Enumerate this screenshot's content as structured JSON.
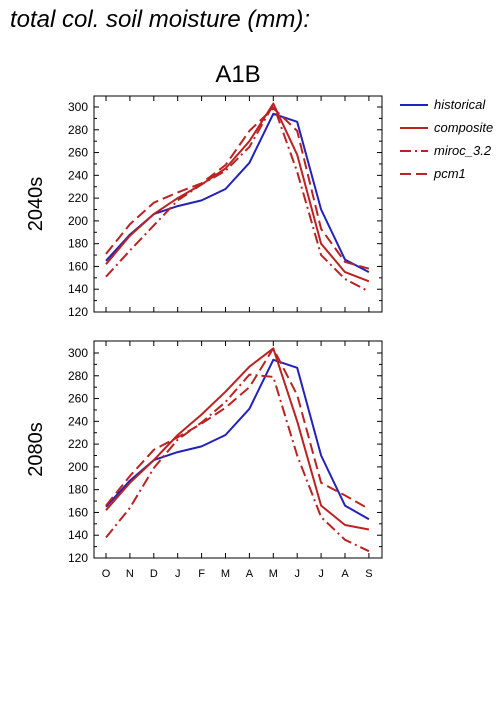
{
  "page": {
    "title": "total col. soil moisture (mm):",
    "scenario": "A1B"
  },
  "legend": [
    {
      "name": "historical",
      "color": "#2222bb",
      "dash": "solid"
    },
    {
      "name": "composite",
      "color": "#bb2222",
      "dash": "solid"
    },
    {
      "name": "miroc_3.2",
      "color": "#bb2222",
      "dash": "dashdot"
    },
    {
      "name": "pcm1",
      "color": "#bb2222",
      "dash": "dash"
    }
  ],
  "chart_data": [
    {
      "type": "line",
      "ylabel": "2040s",
      "categories": [
        "O",
        "N",
        "D",
        "J",
        "F",
        "M",
        "A",
        "M",
        "J",
        "J",
        "A",
        "S"
      ],
      "ylim": [
        120,
        310
      ],
      "yticks": [
        120,
        140,
        160,
        180,
        200,
        220,
        240,
        260,
        280,
        300
      ],
      "series": [
        {
          "name": "historical",
          "values": [
            165,
            188,
            206,
            213,
            218,
            228,
            251,
            294,
            287,
            210,
            166,
            155
          ]
        },
        {
          "name": "composite",
          "values": [
            162,
            187,
            206,
            220,
            232,
            246,
            270,
            303,
            258,
            180,
            155,
            147
          ]
        },
        {
          "name": "miroc_3.2",
          "values": [
            151,
            174,
            196,
            218,
            232,
            244,
            265,
            302,
            243,
            170,
            149,
            138
          ]
        },
        {
          "name": "pcm1",
          "values": [
            171,
            197,
            216,
            225,
            233,
            249,
            279,
            299,
            279,
            193,
            164,
            158
          ]
        }
      ]
    },
    {
      "type": "line",
      "ylabel": "2080s",
      "categories": [
        "O",
        "N",
        "D",
        "J",
        "F",
        "M",
        "A",
        "M",
        "J",
        "J",
        "A",
        "S"
      ],
      "ylim": [
        120,
        310
      ],
      "yticks": [
        120,
        140,
        160,
        180,
        200,
        220,
        240,
        260,
        280,
        300
      ],
      "series": [
        {
          "name": "historical",
          "values": [
            165,
            188,
            206,
            213,
            218,
            228,
            251,
            294,
            287,
            210,
            166,
            154
          ]
        },
        {
          "name": "composite",
          "values": [
            162,
            186,
            206,
            228,
            246,
            266,
            288,
            304,
            240,
            166,
            149,
            145
          ]
        },
        {
          "name": "miroc_3.2",
          "values": [
            138,
            164,
            199,
            224,
            239,
            257,
            281,
            279,
            210,
            156,
            136,
            126
          ]
        },
        {
          "name": "pcm1",
          "values": [
            166,
            192,
            215,
            226,
            238,
            252,
            270,
            304,
            263,
            186,
            175,
            163
          ]
        }
      ]
    }
  ]
}
